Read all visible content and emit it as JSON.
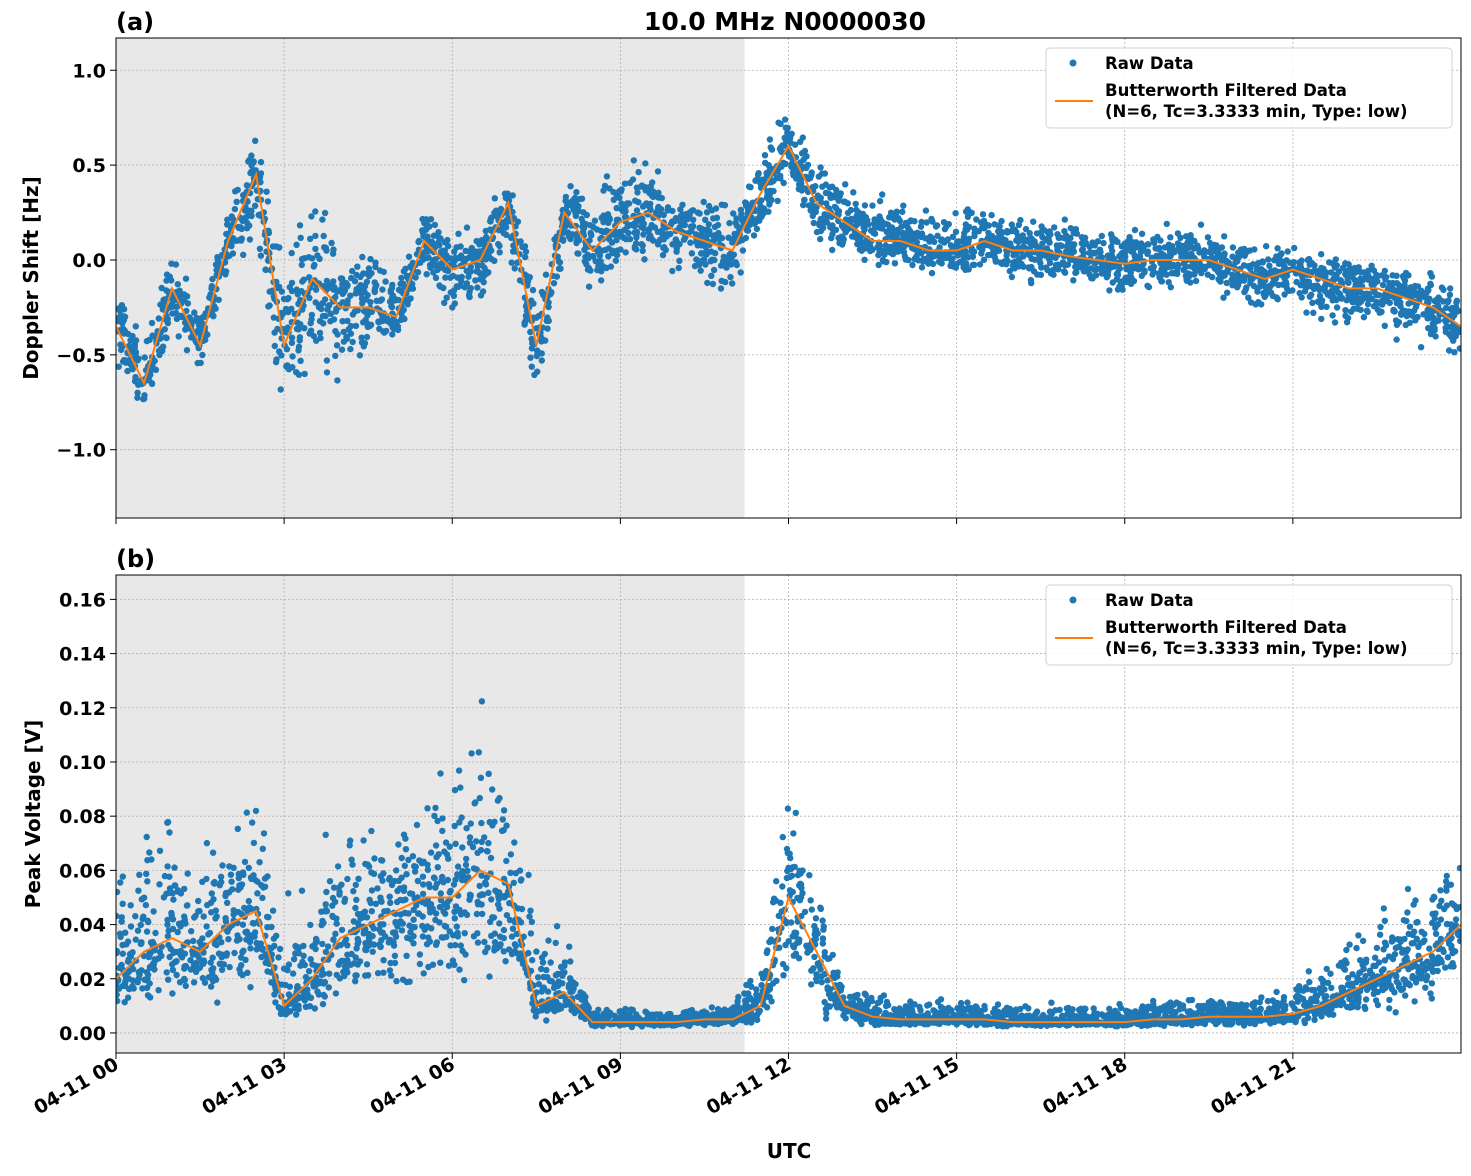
{
  "title": "10.0 MHz N0000030",
  "xlabel": "UTC",
  "x_tick_labels": [
    "04-11 00",
    "04-11 03",
    "04-11 06",
    "04-11 09",
    "04-11 12",
    "04-11 15",
    "04-11 18",
    "04-11 21"
  ],
  "colors": {
    "raw": "#1f77b4",
    "filtered": "#ff7f0e",
    "shade": "#e8e8e8",
    "grid": "#b0b0b0"
  },
  "legend": {
    "raw": "Raw Data",
    "filtered_line1": "Butterworth Filtered Data",
    "filtered_line2": "(N=6, Tc=3.3333 min, Type: low)",
    "placement": "upper-right"
  },
  "chart_data": [
    {
      "panel": "(a)",
      "type": "scatter+line",
      "ylabel": "Doppler Shift [Hz]",
      "xlim": [
        "04-11 00:00",
        "04-12 00:00"
      ],
      "ylim": [
        -1.36,
        1.17
      ],
      "y_ticks": [
        1.0,
        0.5,
        0.0,
        -0.5,
        -1.0
      ],
      "y_tick_labels": [
        "1.0",
        "0.5",
        "0.0",
        "−0.5",
        "−1.0"
      ],
      "grid": true,
      "shaded_span": [
        "04-11 00:00",
        "04-11 11:13"
      ],
      "x": [
        "00:00",
        "00:30",
        "01:00",
        "01:30",
        "02:00",
        "02:30",
        "03:00",
        "03:30",
        "04:00",
        "04:30",
        "05:00",
        "05:30",
        "06:00",
        "06:30",
        "07:00",
        "07:30",
        "08:00",
        "08:30",
        "09:00",
        "09:30",
        "10:00",
        "10:30",
        "11:00",
        "11:30",
        "12:00",
        "12:30",
        "13:00",
        "13:30",
        "14:00",
        "14:30",
        "15:00",
        "15:30",
        "16:00",
        "16:30",
        "17:00",
        "17:30",
        "18:00",
        "18:30",
        "19:00",
        "19:30",
        "20:00",
        "20:30",
        "21:00",
        "21:30",
        "22:00",
        "22:30",
        "23:00",
        "23:30",
        "24:00"
      ],
      "series": [
        {
          "name": "Butterworth Filtered Data",
          "kind": "line",
          "values": [
            -0.35,
            -0.65,
            -0.15,
            -0.45,
            0.1,
            0.45,
            -0.45,
            -0.1,
            -0.25,
            -0.25,
            -0.3,
            0.1,
            -0.05,
            0.0,
            0.3,
            -0.45,
            0.25,
            0.05,
            0.2,
            0.25,
            0.15,
            0.1,
            0.05,
            0.35,
            0.6,
            0.3,
            0.2,
            0.1,
            0.1,
            0.05,
            0.05,
            0.1,
            0.05,
            0.05,
            0.02,
            0.0,
            -0.02,
            0.0,
            0.0,
            0.0,
            -0.05,
            -0.1,
            -0.05,
            -0.1,
            -0.15,
            -0.15,
            -0.2,
            -0.25,
            -0.35
          ]
        },
        {
          "name": "Raw Data",
          "kind": "scatter-band",
          "low": [
            -0.6,
            -0.85,
            -0.4,
            -0.6,
            -0.15,
            0.1,
            -0.95,
            -0.7,
            -0.8,
            -0.6,
            -0.5,
            -0.15,
            -0.4,
            -0.3,
            0.0,
            -0.85,
            -0.05,
            -0.25,
            -0.15,
            -0.05,
            -0.1,
            -0.2,
            -0.25,
            0.1,
            0.4,
            0.05,
            -0.05,
            -0.05,
            -0.1,
            -0.1,
            -0.1,
            -0.1,
            -0.15,
            -0.15,
            -0.2,
            -0.15,
            -0.25,
            -0.2,
            -0.2,
            -0.2,
            -0.25,
            -0.3,
            -0.3,
            -0.35,
            -0.4,
            -0.4,
            -0.45,
            -0.5,
            -0.6
          ],
          "high": [
            -0.1,
            -0.35,
            0.1,
            -0.2,
            0.3,
            0.75,
            0.05,
            0.5,
            0.1,
            0.1,
            0.0,
            0.3,
            0.2,
            0.2,
            0.5,
            -0.1,
            0.45,
            0.5,
            0.6,
            0.6,
            0.45,
            0.35,
            0.35,
            0.6,
            0.92,
            0.6,
            0.45,
            0.4,
            0.35,
            0.3,
            0.3,
            0.4,
            0.3,
            0.3,
            0.25,
            0.25,
            0.2,
            0.2,
            0.25,
            0.2,
            0.15,
            0.1,
            0.1,
            0.05,
            0.05,
            0.0,
            0.0,
            -0.05,
            -0.1
          ]
        }
      ]
    },
    {
      "panel": "(b)",
      "type": "scatter+line",
      "ylabel": "Peak Voltage [V]",
      "xlim": [
        "04-11 00:00",
        "04-12 00:00"
      ],
      "ylim": [
        -0.0074,
        0.169
      ],
      "y_ticks": [
        0.16,
        0.14,
        0.12,
        0.1,
        0.08,
        0.06,
        0.04,
        0.02,
        0.0
      ],
      "y_tick_labels": [
        "0.16",
        "0.14",
        "0.12",
        "0.10",
        "0.08",
        "0.06",
        "0.04",
        "0.02",
        "0.00"
      ],
      "grid": true,
      "shaded_span": [
        "04-11 00:00",
        "04-11 11:13"
      ],
      "x": [
        "00:00",
        "00:30",
        "01:00",
        "01:30",
        "02:00",
        "02:30",
        "03:00",
        "03:30",
        "04:00",
        "04:30",
        "05:00",
        "05:30",
        "06:00",
        "06:30",
        "07:00",
        "07:30",
        "08:00",
        "08:30",
        "09:00",
        "09:30",
        "10:00",
        "10:30",
        "11:00",
        "11:30",
        "12:00",
        "12:30",
        "13:00",
        "13:30",
        "14:00",
        "14:30",
        "15:00",
        "15:30",
        "16:00",
        "16:30",
        "17:00",
        "17:30",
        "18:00",
        "18:30",
        "19:00",
        "19:30",
        "20:00",
        "20:30",
        "21:00",
        "21:30",
        "22:00",
        "22:30",
        "23:00",
        "23:30",
        "24:00"
      ],
      "series": [
        {
          "name": "Butterworth Filtered Data",
          "kind": "line",
          "values": [
            0.02,
            0.03,
            0.035,
            0.03,
            0.04,
            0.045,
            0.01,
            0.02,
            0.035,
            0.04,
            0.045,
            0.05,
            0.05,
            0.06,
            0.055,
            0.01,
            0.015,
            0.004,
            0.004,
            0.004,
            0.004,
            0.005,
            0.005,
            0.01,
            0.05,
            0.03,
            0.01,
            0.006,
            0.005,
            0.005,
            0.005,
            0.005,
            0.004,
            0.004,
            0.004,
            0.004,
            0.004,
            0.005,
            0.005,
            0.006,
            0.006,
            0.006,
            0.007,
            0.01,
            0.015,
            0.02,
            0.025,
            0.03,
            0.04
          ]
        },
        {
          "name": "Raw Data",
          "kind": "scatter-band",
          "low": [
            0.005,
            0.005,
            0.006,
            0.006,
            0.006,
            0.006,
            0.003,
            0.004,
            0.006,
            0.008,
            0.01,
            0.01,
            0.01,
            0.012,
            0.01,
            0.003,
            0.003,
            0.002,
            0.002,
            0.002,
            0.002,
            0.002,
            0.002,
            0.003,
            0.01,
            0.005,
            0.002,
            0.002,
            0.002,
            0.002,
            0.002,
            0.002,
            0.002,
            0.002,
            0.002,
            0.002,
            0.002,
            0.002,
            0.002,
            0.002,
            0.002,
            0.002,
            0.002,
            0.003,
            0.004,
            0.005,
            0.006,
            0.007,
            0.01
          ],
          "high": [
            0.07,
            0.08,
            0.09,
            0.08,
            0.1,
            0.11,
            0.05,
            0.07,
            0.08,
            0.09,
            0.09,
            0.1,
            0.11,
            0.13,
            0.12,
            0.05,
            0.04,
            0.01,
            0.01,
            0.01,
            0.01,
            0.01,
            0.012,
            0.03,
            0.11,
            0.07,
            0.02,
            0.015,
            0.015,
            0.015,
            0.015,
            0.015,
            0.012,
            0.012,
            0.012,
            0.012,
            0.012,
            0.015,
            0.015,
            0.015,
            0.015,
            0.016,
            0.02,
            0.03,
            0.04,
            0.05,
            0.06,
            0.07,
            0.09
          ]
        }
      ]
    }
  ]
}
